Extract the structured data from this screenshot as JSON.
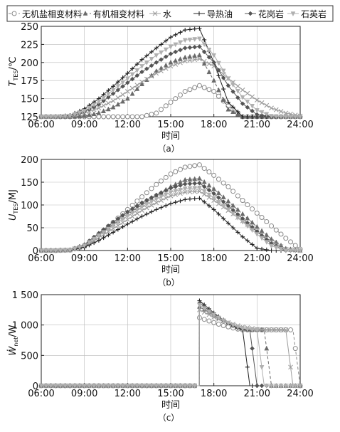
{
  "legend": {
    "items": [
      {
        "label": "无机盐相变材料",
        "series_key": "inorg_pcm"
      },
      {
        "label": "有机相变材料",
        "series_key": "org_pcm"
      },
      {
        "label": "水",
        "series_key": "water"
      },
      {
        "label": "导热油",
        "series_key": "oil"
      },
      {
        "label": "花岗岩",
        "series_key": "granite"
      },
      {
        "label": "石英岩",
        "series_key": "quartzite"
      }
    ]
  },
  "styles": {
    "inorg_pcm": {
      "color": "#8a8a8a",
      "marker": "circle-open",
      "dash": "4,3"
    },
    "org_pcm": {
      "color": "#6a6a6a",
      "marker": "triangle",
      "dash": "4,3"
    },
    "water": {
      "color": "#9c9c9c",
      "marker": "x",
      "dash": ""
    },
    "oil": {
      "color": "#222222",
      "marker": "plus",
      "dash": ""
    },
    "granite": {
      "color": "#555555",
      "marker": "diamond",
      "dash": ""
    },
    "quartzite": {
      "color": "#b0b0b0",
      "marker": "triangle-down",
      "dash": ""
    }
  },
  "chart_data": [
    {
      "type": "line",
      "panel_label": "（a）",
      "xlabel": "时间",
      "ylabel_main": "T",
      "ylabel_sub": "TES",
      "ylabel_unit": "/℃",
      "xlim": [
        6,
        24
      ],
      "ylim": [
        125,
        250
      ],
      "xticks": [
        "06:00",
        "09:00",
        "12:00",
        "15:00",
        "18:00",
        "21:00",
        "24:00"
      ],
      "yticks": [
        "125",
        "150",
        "175",
        "200",
        "225",
        "250"
      ],
      "x": [
        6,
        7,
        8,
        9,
        10,
        11,
        12,
        13,
        14,
        15,
        16,
        17,
        18,
        19,
        20,
        21,
        22,
        23,
        24
      ],
      "series": [
        {
          "key": "inorg_pcm",
          "values": [
            125,
            125,
            125,
            125,
            125,
            125,
            125,
            125,
            130,
            145,
            160,
            168,
            160,
            140,
            125,
            125,
            125,
            125,
            125
          ]
        },
        {
          "key": "org_pcm",
          "values": [
            125,
            125,
            125,
            126,
            130,
            138,
            150,
            170,
            188,
            200,
            207,
            210,
            175,
            135,
            125,
            125,
            125,
            125,
            125
          ]
        },
        {
          "key": "water",
          "values": [
            125,
            125,
            126,
            130,
            137,
            147,
            160,
            173,
            185,
            195,
            202,
            205,
            195,
            178,
            162,
            148,
            137,
            130,
            126
          ]
        },
        {
          "key": "oil",
          "values": [
            125,
            125,
            127,
            136,
            150,
            167,
            185,
            204,
            220,
            235,
            245,
            247,
            200,
            145,
            125,
            125,
            125,
            125,
            125
          ]
        },
        {
          "key": "granite",
          "values": [
            125,
            125,
            126,
            132,
            142,
            157,
            172,
            187,
            200,
            212,
            220,
            222,
            200,
            168,
            143,
            128,
            125,
            125,
            125
          ]
        },
        {
          "key": "quartzite",
          "values": [
            125,
            125,
            126,
            133,
            146,
            162,
            178,
            195,
            210,
            222,
            231,
            233,
            210,
            178,
            152,
            134,
            126,
            125,
            125
          ]
        }
      ]
    },
    {
      "type": "line",
      "panel_label": "（b）",
      "xlabel": "时间",
      "ylabel_main": "U",
      "ylabel_sub": "TES",
      "ylabel_unit": "/MJ",
      "xlim": [
        6,
        24
      ],
      "ylim": [
        0,
        200
      ],
      "xticks": [
        "06:00",
        "09:00",
        "12:00",
        "15:00",
        "18:00",
        "21:00",
        "24:00"
      ],
      "yticks": [
        "0",
        "50",
        "100",
        "150",
        "200"
      ],
      "x": [
        6,
        7,
        8,
        9,
        10,
        11,
        12,
        13,
        14,
        15,
        16,
        17,
        18,
        19,
        20,
        21,
        22,
        23,
        24
      ],
      "series": [
        {
          "key": "inorg_pcm",
          "values": [
            0,
            0,
            1,
            10,
            35,
            62,
            90,
            118,
            145,
            168,
            183,
            188,
            165,
            140,
            110,
            82,
            54,
            27,
            3
          ]
        },
        {
          "key": "org_pcm",
          "values": [
            0,
            0,
            1,
            12,
            35,
            58,
            80,
            100,
            120,
            140,
            155,
            158,
            135,
            108,
            80,
            52,
            25,
            4,
            0
          ]
        },
        {
          "key": "water",
          "values": [
            0,
            0,
            1,
            10,
            28,
            48,
            68,
            88,
            105,
            120,
            128,
            130,
            110,
            88,
            65,
            42,
            20,
            3,
            0
          ]
        },
        {
          "key": "oil",
          "values": [
            0,
            0,
            1,
            7,
            22,
            40,
            58,
            75,
            90,
            103,
            112,
            115,
            90,
            60,
            30,
            5,
            0,
            0,
            0
          ]
        },
        {
          "key": "granite",
          "values": [
            0,
            0,
            1,
            13,
            38,
            62,
            85,
            105,
            122,
            137,
            146,
            148,
            125,
            98,
            70,
            42,
            15,
            0,
            0
          ]
        },
        {
          "key": "quartzite",
          "values": [
            0,
            0,
            1,
            11,
            33,
            55,
            76,
            96,
            113,
            128,
            136,
            138,
            115,
            90,
            63,
            36,
            10,
            0,
            0
          ]
        }
      ]
    },
    {
      "type": "line",
      "panel_label": "（c）",
      "xlabel": "时间",
      "ylabel_main": "Ẇ",
      "ylabel_sub": "net",
      "ylabel_unit": "/W",
      "xlim": [
        6,
        24
      ],
      "ylim": [
        0,
        1500
      ],
      "xticks": [
        "06:00",
        "09:00",
        "12:00",
        "15:00",
        "18:00",
        "21:00",
        "24:00"
      ],
      "yticks": [
        "0",
        "500",
        "1 000",
        "1 500"
      ],
      "x": [
        6,
        7,
        8,
        9,
        10,
        11,
        12,
        13,
        14,
        15,
        16,
        16.99,
        17,
        17.5,
        18,
        18.5,
        19,
        19.5,
        20,
        20.5,
        21,
        21.5,
        22,
        22.5,
        23,
        23.5,
        24
      ],
      "series": [
        {
          "key": "inorg_pcm",
          "values": [
            0,
            0,
            0,
            0,
            0,
            0,
            0,
            0,
            0,
            0,
            0,
            0,
            1120,
            1080,
            1040,
            1000,
            970,
            940,
            920,
            920,
            920,
            920,
            920,
            920,
            920,
            920,
            0
          ]
        },
        {
          "key": "org_pcm",
          "values": [
            0,
            0,
            0,
            0,
            0,
            0,
            0,
            0,
            0,
            0,
            0,
            0,
            1300,
            1230,
            1160,
            1090,
            1030,
            980,
            940,
            920,
            920,
            920,
            0,
            0,
            0,
            0,
            0
          ]
        },
        {
          "key": "water",
          "values": [
            0,
            0,
            0,
            0,
            0,
            0,
            0,
            0,
            0,
            0,
            0,
            0,
            1250,
            1190,
            1130,
            1080,
            1040,
            1000,
            970,
            950,
            930,
            920,
            920,
            920,
            920,
            0,
            0
          ]
        },
        {
          "key": "oil",
          "values": [
            0,
            0,
            0,
            0,
            0,
            0,
            0,
            0,
            0,
            0,
            0,
            0,
            1400,
            1300,
            1200,
            1110,
            1030,
            960,
            920,
            0,
            0,
            0,
            0,
            0,
            0,
            0,
            0
          ]
        },
        {
          "key": "granite",
          "values": [
            0,
            0,
            0,
            0,
            0,
            0,
            0,
            0,
            0,
            0,
            0,
            0,
            1360,
            1270,
            1180,
            1100,
            1030,
            970,
            930,
            920,
            0,
            0,
            0,
            0,
            0,
            0,
            0
          ]
        },
        {
          "key": "quartzite",
          "values": [
            0,
            0,
            0,
            0,
            0,
            0,
            0,
            0,
            0,
            0,
            0,
            0,
            1330,
            1250,
            1170,
            1095,
            1035,
            985,
            945,
            925,
            920,
            0,
            0,
            0,
            0,
            0,
            0
          ]
        }
      ]
    }
  ]
}
